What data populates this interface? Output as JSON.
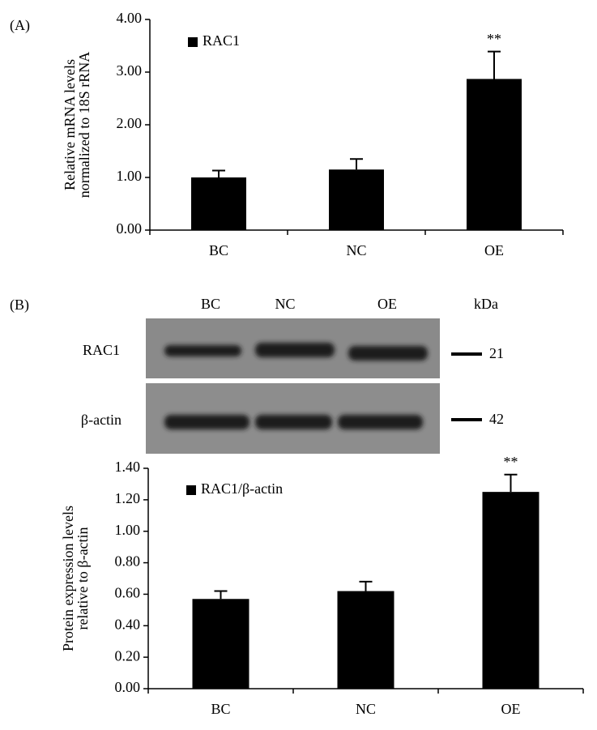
{
  "panels": [
    "(A)",
    "(B)"
  ],
  "blot": {
    "lanes": [
      "BC",
      "NC",
      "OE"
    ],
    "unit": "kDa",
    "rows": [
      {
        "label": "RAC1",
        "size": "21"
      },
      {
        "label": "β-actin",
        "size": "42"
      }
    ]
  },
  "chart_data": [
    {
      "type": "bar",
      "ylabel": [
        "Relative mRNA levels",
        "normalized to 18S rRNA"
      ],
      "categories": [
        "BC",
        "NC",
        "OE"
      ],
      "series": [
        {
          "name": "RAC1",
          "color": "#000000",
          "values": [
            1.0,
            1.15,
            2.87
          ],
          "errors": [
            0.13,
            0.2,
            0.52
          ]
        }
      ],
      "annotations": [
        null,
        null,
        "**"
      ],
      "ylim": [
        0,
        4
      ],
      "yticks": [
        {
          "value": 0,
          "label": "0.00"
        },
        {
          "value": 1,
          "label": "1.00"
        },
        {
          "value": 2,
          "label": "2.00"
        },
        {
          "value": 3,
          "label": "3.00"
        },
        {
          "value": 4,
          "label": "4.00"
        }
      ],
      "legend": "top-left"
    },
    {
      "type": "bar",
      "ylabel": [
        "Protein expression levels",
        "relative  to β-actin"
      ],
      "categories": [
        "BC",
        "NC",
        "OE"
      ],
      "series": [
        {
          "name": "RAC1/β-actin",
          "color": "#000000",
          "values": [
            0.57,
            0.62,
            1.25
          ],
          "errors": [
            0.05,
            0.06,
            0.11
          ]
        }
      ],
      "annotations": [
        null,
        null,
        "**"
      ],
      "ylim": [
        0,
        1.4
      ],
      "yticks": [
        {
          "value": 0,
          "label": "0.00"
        },
        {
          "value": 0.2,
          "label": "0.20"
        },
        {
          "value": 0.4,
          "label": "0.40"
        },
        {
          "value": 0.6,
          "label": "0.60"
        },
        {
          "value": 0.8,
          "label": "0.80"
        },
        {
          "value": 1.0,
          "label": "1.00"
        },
        {
          "value": 1.2,
          "label": "1.20"
        },
        {
          "value": 1.4,
          "label": "1.40"
        }
      ],
      "legend": "top-left"
    }
  ]
}
